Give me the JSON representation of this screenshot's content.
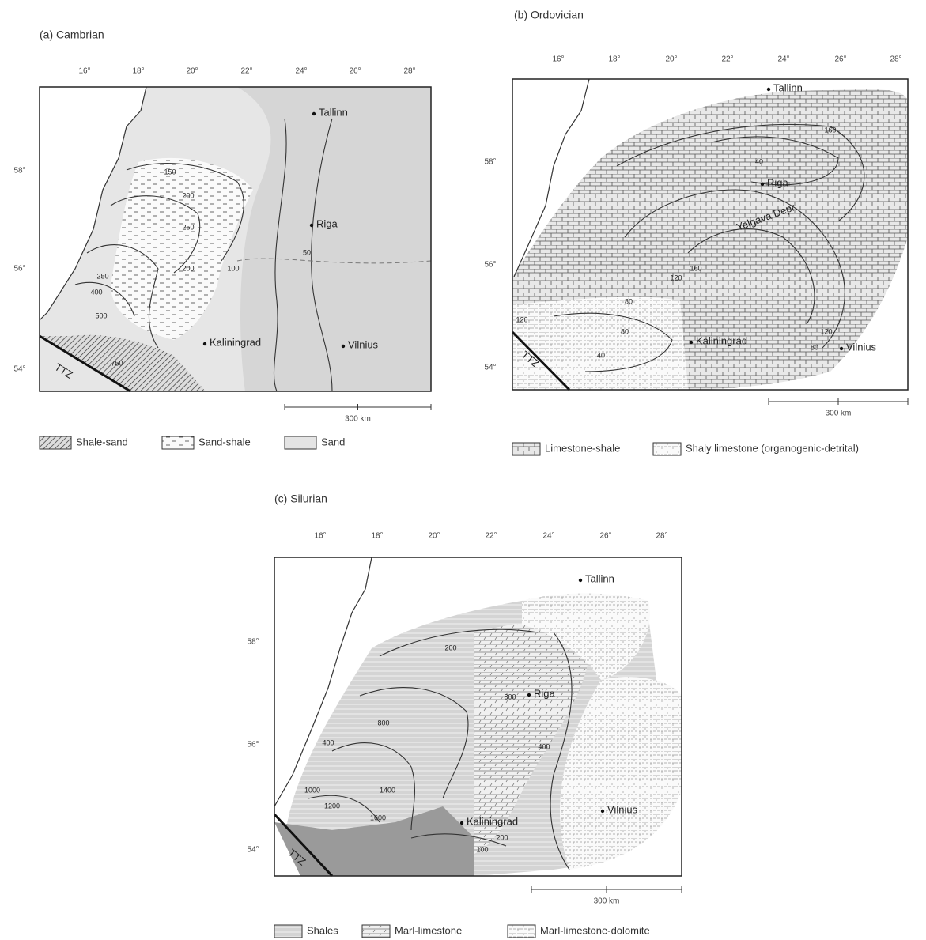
{
  "panels": [
    {
      "title": "(a) Cambrian",
      "longitude_labels": [
        "16°",
        "18°",
        "20°",
        "22°",
        "24°",
        "26°",
        "28°"
      ],
      "latitude_labels": [
        "58°",
        "56°",
        "54°"
      ],
      "places": [
        "Tallinn",
        "Riga",
        "Kaliningrad",
        "Vilnius"
      ],
      "fault_label": "TTZ",
      "scale_label": "300 km",
      "contour_labels": [
        "150",
        "200",
        "250",
        "200",
        "250",
        "400",
        "500",
        "750",
        "100",
        "50"
      ],
      "legend": [
        "Shale-sand",
        "Sand-shale",
        "Sand"
      ]
    },
    {
      "title": "(b) Ordovician",
      "longitude_labels": [
        "16°",
        "18°",
        "20°",
        "22°",
        "24°",
        "26°",
        "28°"
      ],
      "latitude_labels": [
        "58°",
        "56°",
        "54°"
      ],
      "places": [
        "Tallinn",
        "Riga",
        "Kaliningrad",
        "Vilnius"
      ],
      "fault_label": "TTZ",
      "annotation": "Yelgava Depr.",
      "scale_label": "300 km",
      "contour_labels": [
        "120",
        "80",
        "80",
        "40",
        "120",
        "160",
        "120",
        "80",
        "40",
        "160"
      ],
      "legend": [
        "Limestone-shale",
        "Shaly limestone (organogenic-detrital)"
      ]
    },
    {
      "title": "(c) Silurian",
      "longitude_labels": [
        "16°",
        "18°",
        "20°",
        "22°",
        "24°",
        "26°",
        "28°"
      ],
      "latitude_labels": [
        "58°",
        "56°",
        "54°"
      ],
      "places": [
        "Tallinn",
        "Riga",
        "Kaliningrad",
        "Vilnius"
      ],
      "fault_label": "TTZ",
      "scale_label": "300 km",
      "contour_labels": [
        "200",
        "400",
        "800",
        "1000",
        "1200",
        "1400",
        "1600",
        "800",
        "400",
        "200",
        "100"
      ],
      "legend": [
        "Shales",
        "Marl-limestone",
        "Marl-limestone-dolomite"
      ]
    }
  ]
}
